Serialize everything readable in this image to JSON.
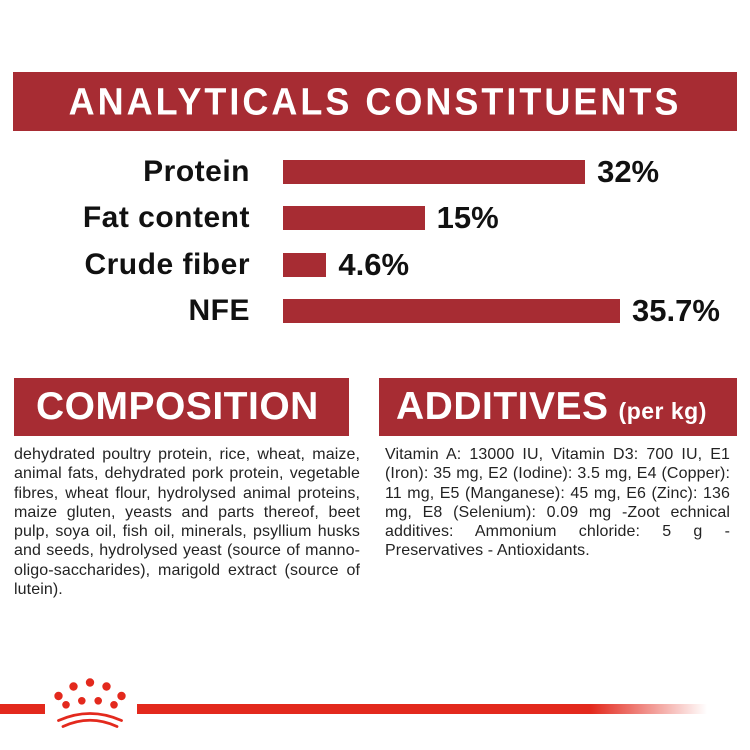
{
  "header": {
    "title": "ANALYTICALS CONSTITUENTS"
  },
  "chart_data": {
    "type": "bar",
    "orientation": "horizontal",
    "categories": [
      "Protein",
      "Fat content",
      "Crude fiber",
      "NFE"
    ],
    "values": [
      32,
      15,
      4.6,
      35.7
    ],
    "value_labels": [
      "32%",
      "15%",
      "4.6%",
      "35.7%"
    ],
    "unit": "%",
    "xlim": [
      0,
      38
    ],
    "grid": false,
    "bar_color": "#a72c33",
    "title": "ANALYTICALS CONSTITUENTS"
  },
  "composition": {
    "title": "COMPOSITION",
    "body": "dehydrated poultry protein, rice, wheat, maize, animal fats, dehydrated pork protein, vegetable fibres, wheat flour, hydrolysed animal proteins, maize gluten, yeasts and parts thereof, beet pulp, soya oil, fish oil, minerals, psyllium husks and seeds, hydrolysed yeast (source of manno-oligo-saccharides), marigold extract (source of lutein)."
  },
  "additives": {
    "title": "ADDITIVES",
    "unit_label": "(per kg)",
    "body": "Vitamin A: 13000 IU, Vitamin D3: 700 IU, E1 (Iron): 35 mg, E2 (Iodine): 3.5 mg, E4 (Copper): 11 mg, E5 (Manganese): 45 mg, E6 (Zinc): 136 mg, E8 (Selenium): 0.09 mg -Zoot echnical additives: Ammonium chloride: 5 g - Preservatives - Antioxidants."
  },
  "footer": {
    "logo": "royal-canin-crown"
  },
  "colors": {
    "panel_red": "#a72c33",
    "accent_red": "#e3291d",
    "text_black": "#1d1d1b",
    "background": "#ffffff"
  }
}
